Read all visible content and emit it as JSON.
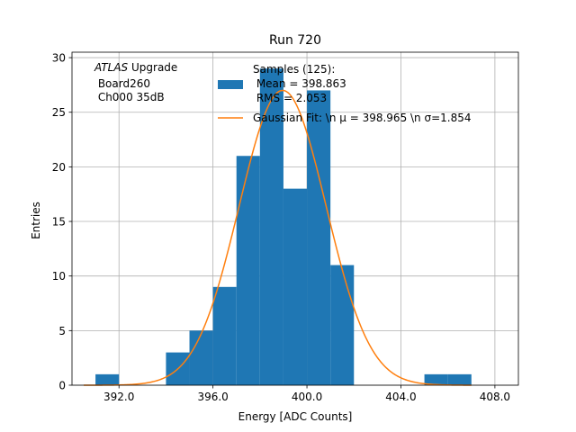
{
  "chart_data": {
    "type": "bar",
    "subtype": "histogram",
    "title": "Run 720",
    "xlabel": "Energy [ADC Counts]",
    "ylabel": "Entries",
    "xlim": [
      390,
      409
    ],
    "ylim": [
      0,
      30.5
    ],
    "xticks": [
      392,
      396,
      400,
      404,
      408
    ],
    "xtick_labels": [
      "392.0",
      "396.0",
      "400.0",
      "404.0",
      "408.0"
    ],
    "yticks": [
      0,
      5,
      10,
      15,
      20,
      25,
      30
    ],
    "ytick_labels": [
      "0",
      "5",
      "10",
      "15",
      "20",
      "25",
      "30"
    ],
    "grid": true,
    "bar_color": "#1f77b4",
    "fit_color": "#ff7f0e",
    "bins": [
      {
        "left": 391,
        "right": 392,
        "count": 1
      },
      {
        "left": 392,
        "right": 393,
        "count": 0
      },
      {
        "left": 393,
        "right": 394,
        "count": 0
      },
      {
        "left": 394,
        "right": 395,
        "count": 3
      },
      {
        "left": 395,
        "right": 396,
        "count": 5
      },
      {
        "left": 396,
        "right": 397,
        "count": 9
      },
      {
        "left": 397,
        "right": 398,
        "count": 21
      },
      {
        "left": 398,
        "right": 399,
        "count": 29
      },
      {
        "left": 399,
        "right": 400,
        "count": 18
      },
      {
        "left": 400,
        "right": 401,
        "count": 27
      },
      {
        "left": 401,
        "right": 402,
        "count": 11
      },
      {
        "left": 402,
        "right": 403,
        "count": 0
      },
      {
        "left": 403,
        "right": 404,
        "count": 0
      },
      {
        "left": 404,
        "right": 405,
        "count": 0
      },
      {
        "left": 405,
        "right": 406,
        "count": 1
      },
      {
        "left": 406,
        "right": 407,
        "count": 1
      }
    ],
    "fit": {
      "type": "gaussian",
      "mu": 398.965,
      "sigma": 1.854,
      "amplitude": 27.0,
      "x_range": [
        390.5,
        407.0
      ]
    },
    "annotation": {
      "italic": "ATLAS",
      "line1_rest": " Upgrade",
      "line2": " Board260",
      "line3": " Ch000 35dB"
    },
    "legend": {
      "location": "top-right",
      "hist_label_lines": [
        "Samples (125):",
        " Mean = 398.863",
        " RMS = 2.053"
      ],
      "fit_label": "Gaussian Fit: \\n μ = 398.965 \\n σ=1.854"
    }
  }
}
